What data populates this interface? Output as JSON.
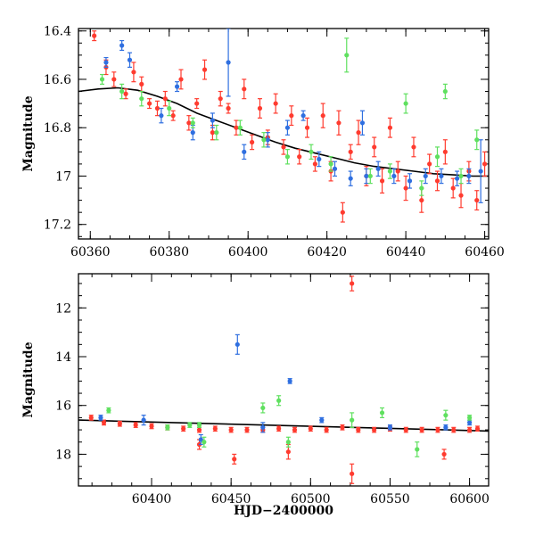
{
  "chart_data": [
    {
      "type": "scatter",
      "title": "",
      "xlabel": "",
      "ylabel": "Magnitude",
      "xlim": [
        60357,
        60461
      ],
      "ylim": [
        17.26,
        16.39
      ],
      "x_ticks": [
        60360,
        60380,
        60400,
        60420,
        60440,
        60460
      ],
      "x_tick_labels": [
        "60360",
        "60380",
        "60400",
        "60420",
        "60440",
        "60460"
      ],
      "y_ticks": [
        16.4,
        16.6,
        16.8,
        17.0,
        17.2
      ],
      "y_tick_labels": [
        "16.4",
        "16.6",
        "16.8",
        "17",
        "17.2"
      ],
      "grid": false,
      "fit_curve": [
        [
          60357,
          16.65
        ],
        [
          60362,
          16.64
        ],
        [
          60367,
          16.635
        ],
        [
          60372,
          16.645
        ],
        [
          60377,
          16.67
        ],
        [
          60382,
          16.7
        ],
        [
          60387,
          16.74
        ],
        [
          60392,
          16.77
        ],
        [
          60397,
          16.8
        ],
        [
          60402,
          16.83
        ],
        [
          60407,
          16.86
        ],
        [
          60412,
          16.885
        ],
        [
          60417,
          16.905
        ],
        [
          60422,
          16.925
        ],
        [
          60427,
          16.945
        ],
        [
          60432,
          16.96
        ],
        [
          60437,
          16.97
        ],
        [
          60442,
          16.98
        ],
        [
          60447,
          16.99
        ],
        [
          60452,
          16.995
        ],
        [
          60457,
          17.0
        ],
        [
          60461,
          17.0
        ]
      ],
      "series": [
        {
          "color": "#ff3b2f",
          "points": [
            [
              60361,
              16.42,
              0.02
            ],
            [
              60364,
              16.55,
              0.03
            ],
            [
              60366,
              16.6,
              0.03
            ],
            [
              60369,
              16.66,
              0.02
            ],
            [
              60371,
              16.57,
              0.04
            ],
            [
              60373,
              16.62,
              0.03
            ],
            [
              60375,
              16.7,
              0.02
            ],
            [
              60377,
              16.72,
              0.03
            ],
            [
              60379,
              16.68,
              0.03
            ],
            [
              60381,
              16.75,
              0.02
            ],
            [
              60383,
              16.6,
              0.04
            ],
            [
              60385,
              16.78,
              0.03
            ],
            [
              60387,
              16.7,
              0.02
            ],
            [
              60389,
              16.56,
              0.04
            ],
            [
              60391,
              16.82,
              0.03
            ],
            [
              60393,
              16.68,
              0.03
            ],
            [
              60395,
              16.72,
              0.02
            ],
            [
              60397,
              16.8,
              0.03
            ],
            [
              60399,
              16.64,
              0.04
            ],
            [
              60401,
              16.86,
              0.03
            ],
            [
              60403,
              16.72,
              0.04
            ],
            [
              60405,
              16.84,
              0.03
            ],
            [
              60407,
              16.7,
              0.04
            ],
            [
              60409,
              16.88,
              0.03
            ],
            [
              60411,
              16.75,
              0.04
            ],
            [
              60413,
              16.92,
              0.03
            ],
            [
              60415,
              16.8,
              0.04
            ],
            [
              60417,
              16.95,
              0.03
            ],
            [
              60419,
              16.75,
              0.05
            ],
            [
              60421,
              16.98,
              0.04
            ],
            [
              60423,
              16.78,
              0.05
            ],
            [
              60424,
              17.15,
              0.04
            ],
            [
              60426,
              16.9,
              0.03
            ],
            [
              60428,
              16.82,
              0.05
            ],
            [
              60430,
              17.0,
              0.04
            ],
            [
              60432,
              16.88,
              0.04
            ],
            [
              60434,
              17.02,
              0.05
            ],
            [
              60436,
              16.8,
              0.04
            ],
            [
              60438,
              16.98,
              0.04
            ],
            [
              60440,
              17.05,
              0.05
            ],
            [
              60442,
              16.88,
              0.04
            ],
            [
              60444,
              17.1,
              0.05
            ],
            [
              60446,
              16.95,
              0.04
            ],
            [
              60448,
              17.02,
              0.04
            ],
            [
              60450,
              16.9,
              0.05
            ],
            [
              60452,
              17.05,
              0.04
            ],
            [
              60454,
              17.08,
              0.05
            ],
            [
              60456,
              16.98,
              0.04
            ],
            [
              60458,
              17.1,
              0.04
            ],
            [
              60460,
              16.95,
              0.05
            ]
          ]
        },
        {
          "color": "#2f6fe0",
          "points": [
            [
              60364,
              16.53,
              0.02
            ],
            [
              60368,
              16.46,
              0.02
            ],
            [
              60370,
              16.52,
              0.03
            ],
            [
              60378,
              16.75,
              0.03
            ],
            [
              60382,
              16.63,
              0.02
            ],
            [
              60386,
              16.82,
              0.03
            ],
            [
              60391,
              16.77,
              0.03
            ],
            [
              60395,
              16.53,
              0.14
            ],
            [
              60399,
              16.9,
              0.03
            ],
            [
              60405,
              16.85,
              0.03
            ],
            [
              60410,
              16.8,
              0.03
            ],
            [
              60414,
              16.75,
              0.02
            ],
            [
              60418,
              16.93,
              0.03
            ],
            [
              60422,
              16.97,
              0.03
            ],
            [
              60426,
              17.01,
              0.03
            ],
            [
              60429,
              16.78,
              0.05
            ],
            [
              60430,
              17.0,
              0.03
            ],
            [
              60433,
              16.97,
              0.03
            ],
            [
              60437,
              17.0,
              0.03
            ],
            [
              60441,
              17.02,
              0.03
            ],
            [
              60445,
              17.0,
              0.03
            ],
            [
              60449,
              17.0,
              0.03
            ],
            [
              60453,
              17.01,
              0.03
            ],
            [
              60456,
              17.0,
              0.03
            ],
            [
              60459,
              16.98,
              0.13
            ]
          ]
        },
        {
          "color": "#5fe05f",
          "points": [
            [
              60363,
              16.6,
              0.02
            ],
            [
              60368,
              16.65,
              0.03
            ],
            [
              60373,
              16.68,
              0.03
            ],
            [
              60380,
              16.72,
              0.03
            ],
            [
              60386,
              16.78,
              0.02
            ],
            [
              60392,
              16.82,
              0.03
            ],
            [
              60398,
              16.8,
              0.03
            ],
            [
              60404,
              16.85,
              0.03
            ],
            [
              60410,
              16.92,
              0.03
            ],
            [
              60416,
              16.9,
              0.03
            ],
            [
              60421,
              16.95,
              0.03
            ],
            [
              60425,
              16.5,
              0.07
            ],
            [
              60431,
              17.0,
              0.03
            ],
            [
              60436,
              16.98,
              0.03
            ],
            [
              60440,
              16.7,
              0.04
            ],
            [
              60444,
              17.05,
              0.03
            ],
            [
              60448,
              16.92,
              0.04
            ],
            [
              60450,
              16.65,
              0.03
            ],
            [
              60454,
              17.0,
              0.03
            ],
            [
              60458,
              16.85,
              0.04
            ]
          ]
        }
      ]
    },
    {
      "type": "scatter",
      "title": "",
      "xlabel": "HJD−2400000",
      "ylabel": "Magnitude",
      "xlim": [
        60354,
        60612
      ],
      "ylim": [
        19.3,
        10.6
      ],
      "x_ticks": [
        60400,
        60450,
        60500,
        60550,
        60600
      ],
      "x_tick_labels": [
        "60400",
        "60450",
        "60500",
        "60550",
        "60600"
      ],
      "y_ticks": [
        12,
        14,
        16,
        18
      ],
      "y_tick_labels": [
        "12",
        "14",
        "16",
        "18"
      ],
      "grid": false,
      "fit_line": [
        [
          60354,
          16.6
        ],
        [
          60612,
          17.05
        ]
      ],
      "series": [
        {
          "color": "#ff3b2f",
          "points": [
            [
              60362,
              16.5,
              0.1
            ],
            [
              60370,
              16.7,
              0.1
            ],
            [
              60380,
              16.75,
              0.1
            ],
            [
              60390,
              16.8,
              0.1
            ],
            [
              60400,
              16.85,
              0.1
            ],
            [
              60410,
              16.9,
              0.1
            ],
            [
              60420,
              16.95,
              0.1
            ],
            [
              60430,
              17.0,
              0.1
            ],
            [
              60430,
              17.6,
              0.2
            ],
            [
              60440,
              16.95,
              0.1
            ],
            [
              60450,
              17.0,
              0.1
            ],
            [
              60452,
              18.2,
              0.2
            ],
            [
              60460,
              17.0,
              0.1
            ],
            [
              60470,
              17.0,
              0.1
            ],
            [
              60480,
              16.95,
              0.1
            ],
            [
              60486,
              17.9,
              0.3
            ],
            [
              60490,
              17.0,
              0.1
            ],
            [
              60500,
              16.95,
              0.1
            ],
            [
              60510,
              17.0,
              0.1
            ],
            [
              60520,
              16.9,
              0.1
            ],
            [
              60526,
              11.0,
              0.3
            ],
            [
              60526,
              18.8,
              0.4
            ],
            [
              60530,
              17.0,
              0.1
            ],
            [
              60540,
              17.0,
              0.1
            ],
            [
              60550,
              16.95,
              0.1
            ],
            [
              60560,
              17.0,
              0.1
            ],
            [
              60570,
              17.0,
              0.1
            ],
            [
              60580,
              17.0,
              0.1
            ],
            [
              60584,
              18.0,
              0.2
            ],
            [
              60590,
              17.0,
              0.1
            ],
            [
              60600,
              17.0,
              0.1
            ],
            [
              60605,
              16.95,
              0.1
            ]
          ]
        },
        {
          "color": "#2f6fe0",
          "points": [
            [
              60368,
              16.5,
              0.1
            ],
            [
              60395,
              16.6,
              0.2
            ],
            [
              60431,
              17.4,
              0.2
            ],
            [
              60454,
              13.5,
              0.4
            ],
            [
              60470,
              16.9,
              0.2
            ],
            [
              60487,
              15.0,
              0.1
            ],
            [
              60507,
              16.6,
              0.1
            ],
            [
              60550,
              16.9,
              0.1
            ],
            [
              60585,
              16.9,
              0.1
            ],
            [
              60600,
              16.7,
              0.1
            ]
          ]
        },
        {
          "color": "#5fe05f",
          "points": [
            [
              60373,
              16.2,
              0.1
            ],
            [
              60410,
              16.9,
              0.1
            ],
            [
              60424,
              16.8,
              0.1
            ],
            [
              60430,
              16.8,
              0.1
            ],
            [
              60433,
              17.5,
              0.2
            ],
            [
              60470,
              16.1,
              0.2
            ],
            [
              60480,
              15.8,
              0.2
            ],
            [
              60486,
              17.5,
              0.2
            ],
            [
              60526,
              16.6,
              0.3
            ],
            [
              60545,
              16.3,
              0.2
            ],
            [
              60567,
              17.8,
              0.3
            ],
            [
              60585,
              16.4,
              0.2
            ],
            [
              60600,
              16.5,
              0.1
            ]
          ]
        }
      ]
    }
  ]
}
